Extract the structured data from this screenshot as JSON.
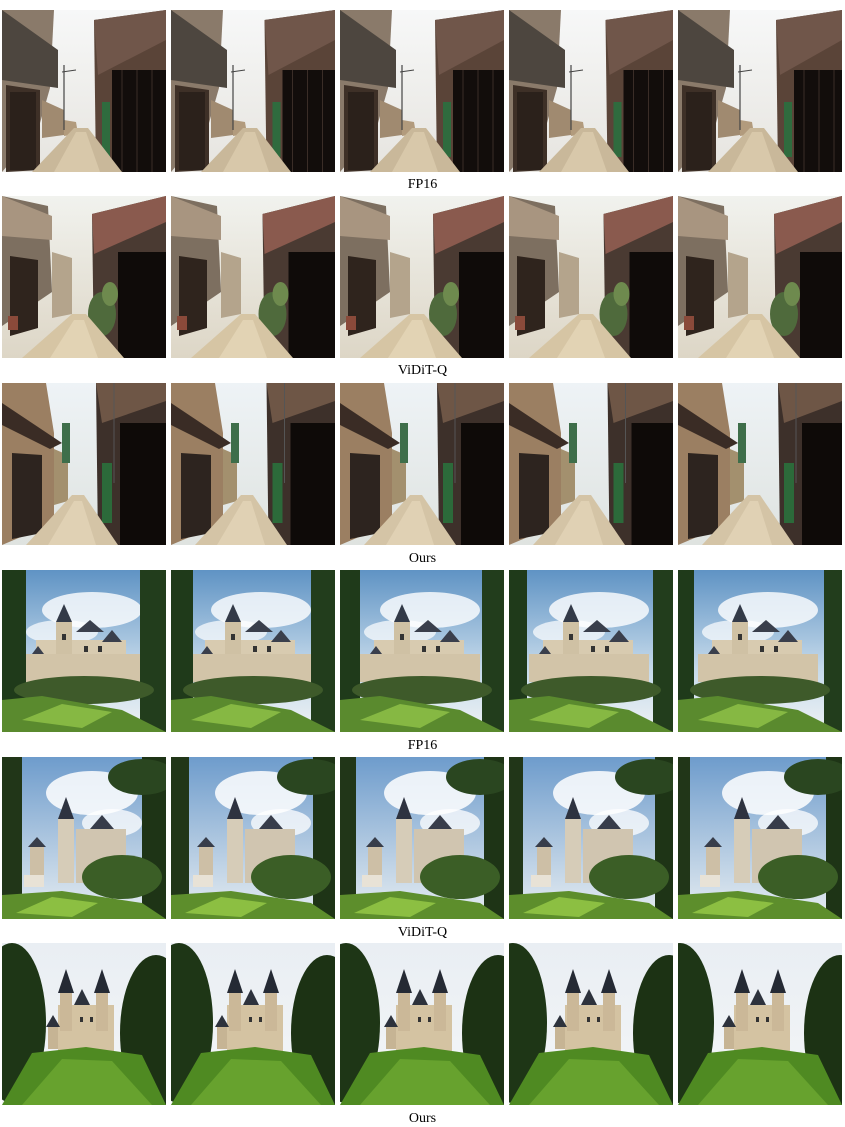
{
  "rows": [
    {
      "caption": "FP16",
      "scene": "alley-a"
    },
    {
      "caption": "ViDiT-Q",
      "scene": "alley-b"
    },
    {
      "caption": "Ours",
      "scene": "alley-c"
    },
    {
      "caption": "FP16",
      "scene": "castle-a"
    },
    {
      "caption": "ViDiT-Q",
      "scene": "castle-b"
    },
    {
      "caption": "Ours",
      "scene": "castle-c"
    }
  ]
}
